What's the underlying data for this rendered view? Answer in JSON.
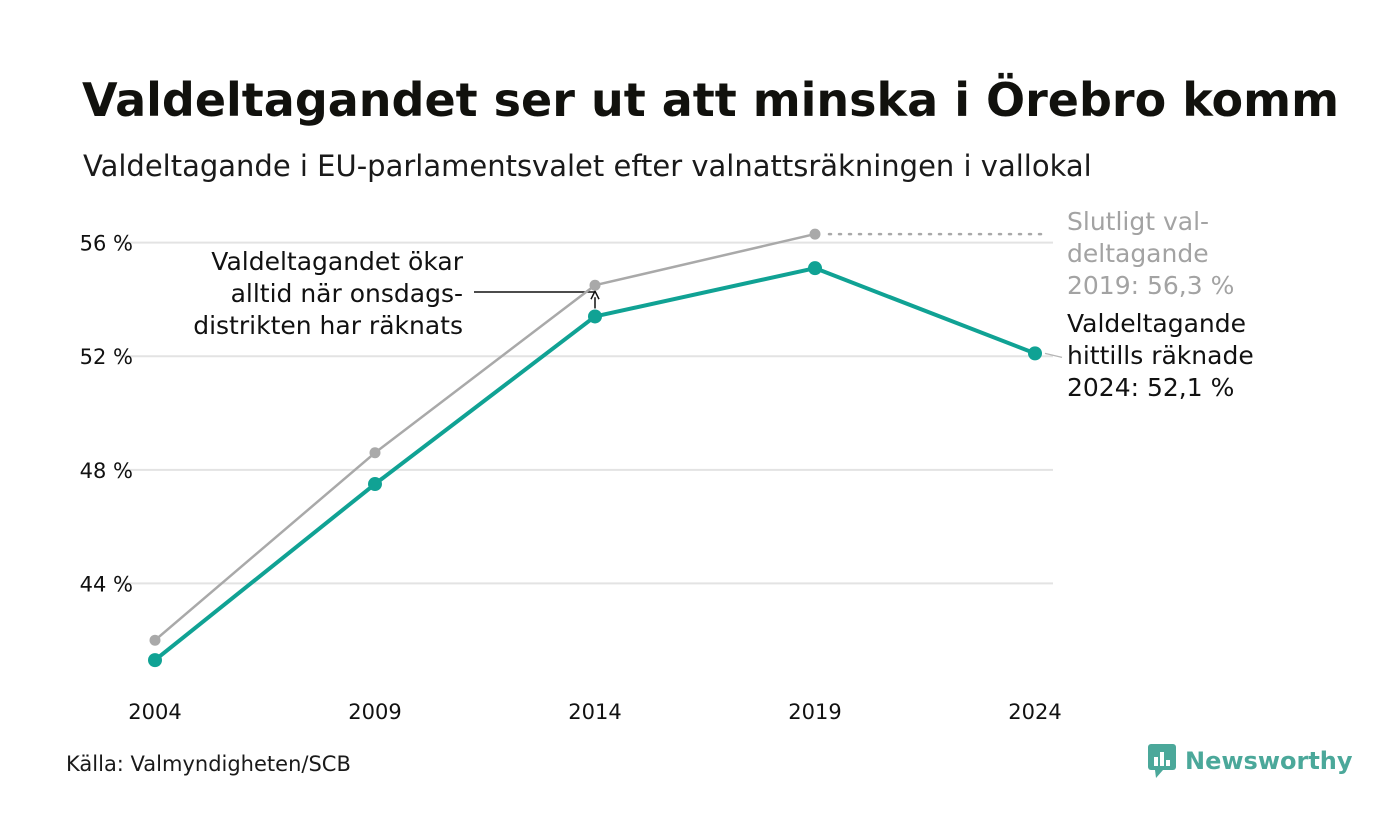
{
  "title": "Valdeltagandet ser ut att minska i Örebro kommun",
  "subtitle": "Valdeltagande i EU-parlamentsvalet efter valnattsräkningen i vallokal",
  "source": "Källa: Valmyndigheten/SCB",
  "brand": "Newsworthy",
  "colors": {
    "teal": "#10a294",
    "gray": "#a9a9a9",
    "grid": "#e3e3e3",
    "gray_text": "#a3a3a3",
    "brand": "#4ba89a"
  },
  "chart_data": {
    "type": "line",
    "x": [
      2004,
      2009,
      2014,
      2019,
      2024
    ],
    "series": [
      {
        "key": "final",
        "values": [
          42.0,
          48.6,
          54.5,
          56.3,
          null
        ]
      },
      {
        "key": "counted",
        "values": [
          41.3,
          47.5,
          53.4,
          55.1,
          52.1
        ]
      }
    ],
    "y_ticks": [
      {
        "value": 44,
        "label": "44 %"
      },
      {
        "value": 48,
        "label": "48 %"
      },
      {
        "value": 52,
        "label": "52 %"
      },
      {
        "value": 56,
        "label": "56 %"
      }
    ],
    "x_ticks": [
      {
        "value": 2004,
        "label": "2004"
      },
      {
        "value": 2009,
        "label": "2009"
      },
      {
        "value": 2014,
        "label": "2014"
      },
      {
        "value": 2019,
        "label": "2019"
      },
      {
        "value": 2024,
        "label": "2024"
      }
    ],
    "ylim": [
      40.6,
      57.5
    ],
    "xlim": [
      2004,
      2024
    ],
    "grid": true,
    "annotations": {
      "increase": [
        "Valdeltagandet ökar",
        "alltid när onsdags-",
        "distrikten har räknats"
      ],
      "final_2019": [
        "Slutligt val-",
        "deltagande",
        "2019: 56,3 %"
      ],
      "counted_2024": [
        "Valdeltagande",
        "hittills räknade",
        "2024: 52,1 %"
      ]
    }
  }
}
